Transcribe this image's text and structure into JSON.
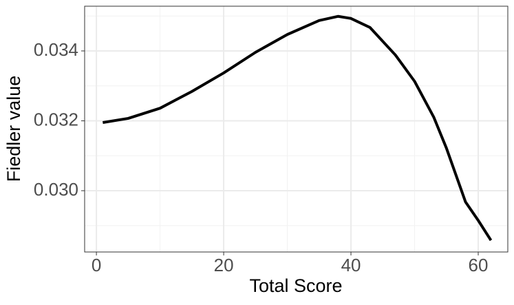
{
  "chart_data": {
    "type": "line",
    "x_label": "Total Score",
    "y_label": "Fiedler value",
    "x": [
      1,
      5,
      10,
      15,
      20,
      25,
      30,
      35,
      38,
      40,
      43,
      47,
      50,
      53,
      55,
      58,
      60,
      62
    ],
    "series": [
      {
        "color": "#000000",
        "values": [
          0.03195,
          0.03207,
          0.03236,
          0.03284,
          0.03337,
          0.03396,
          0.03447,
          0.03487,
          0.03499,
          0.03493,
          0.03467,
          0.03388,
          0.03313,
          0.03211,
          0.03122,
          0.02968,
          0.02915,
          0.02858
        ]
      }
    ],
    "xlim": [
      -1.85,
      64.65
    ],
    "ylim": [
      0.028246,
      0.03528
    ],
    "xticks": [
      0,
      20,
      40,
      60
    ],
    "yticks": [
      {
        "value": 0.03,
        "label": "0.030"
      },
      0.032,
      0.034
    ],
    "x_minor_grid": [
      10,
      30,
      50
    ],
    "y_minor_grid": [
      0.029,
      0.031,
      0.033,
      0.035
    ],
    "grid": true
  }
}
